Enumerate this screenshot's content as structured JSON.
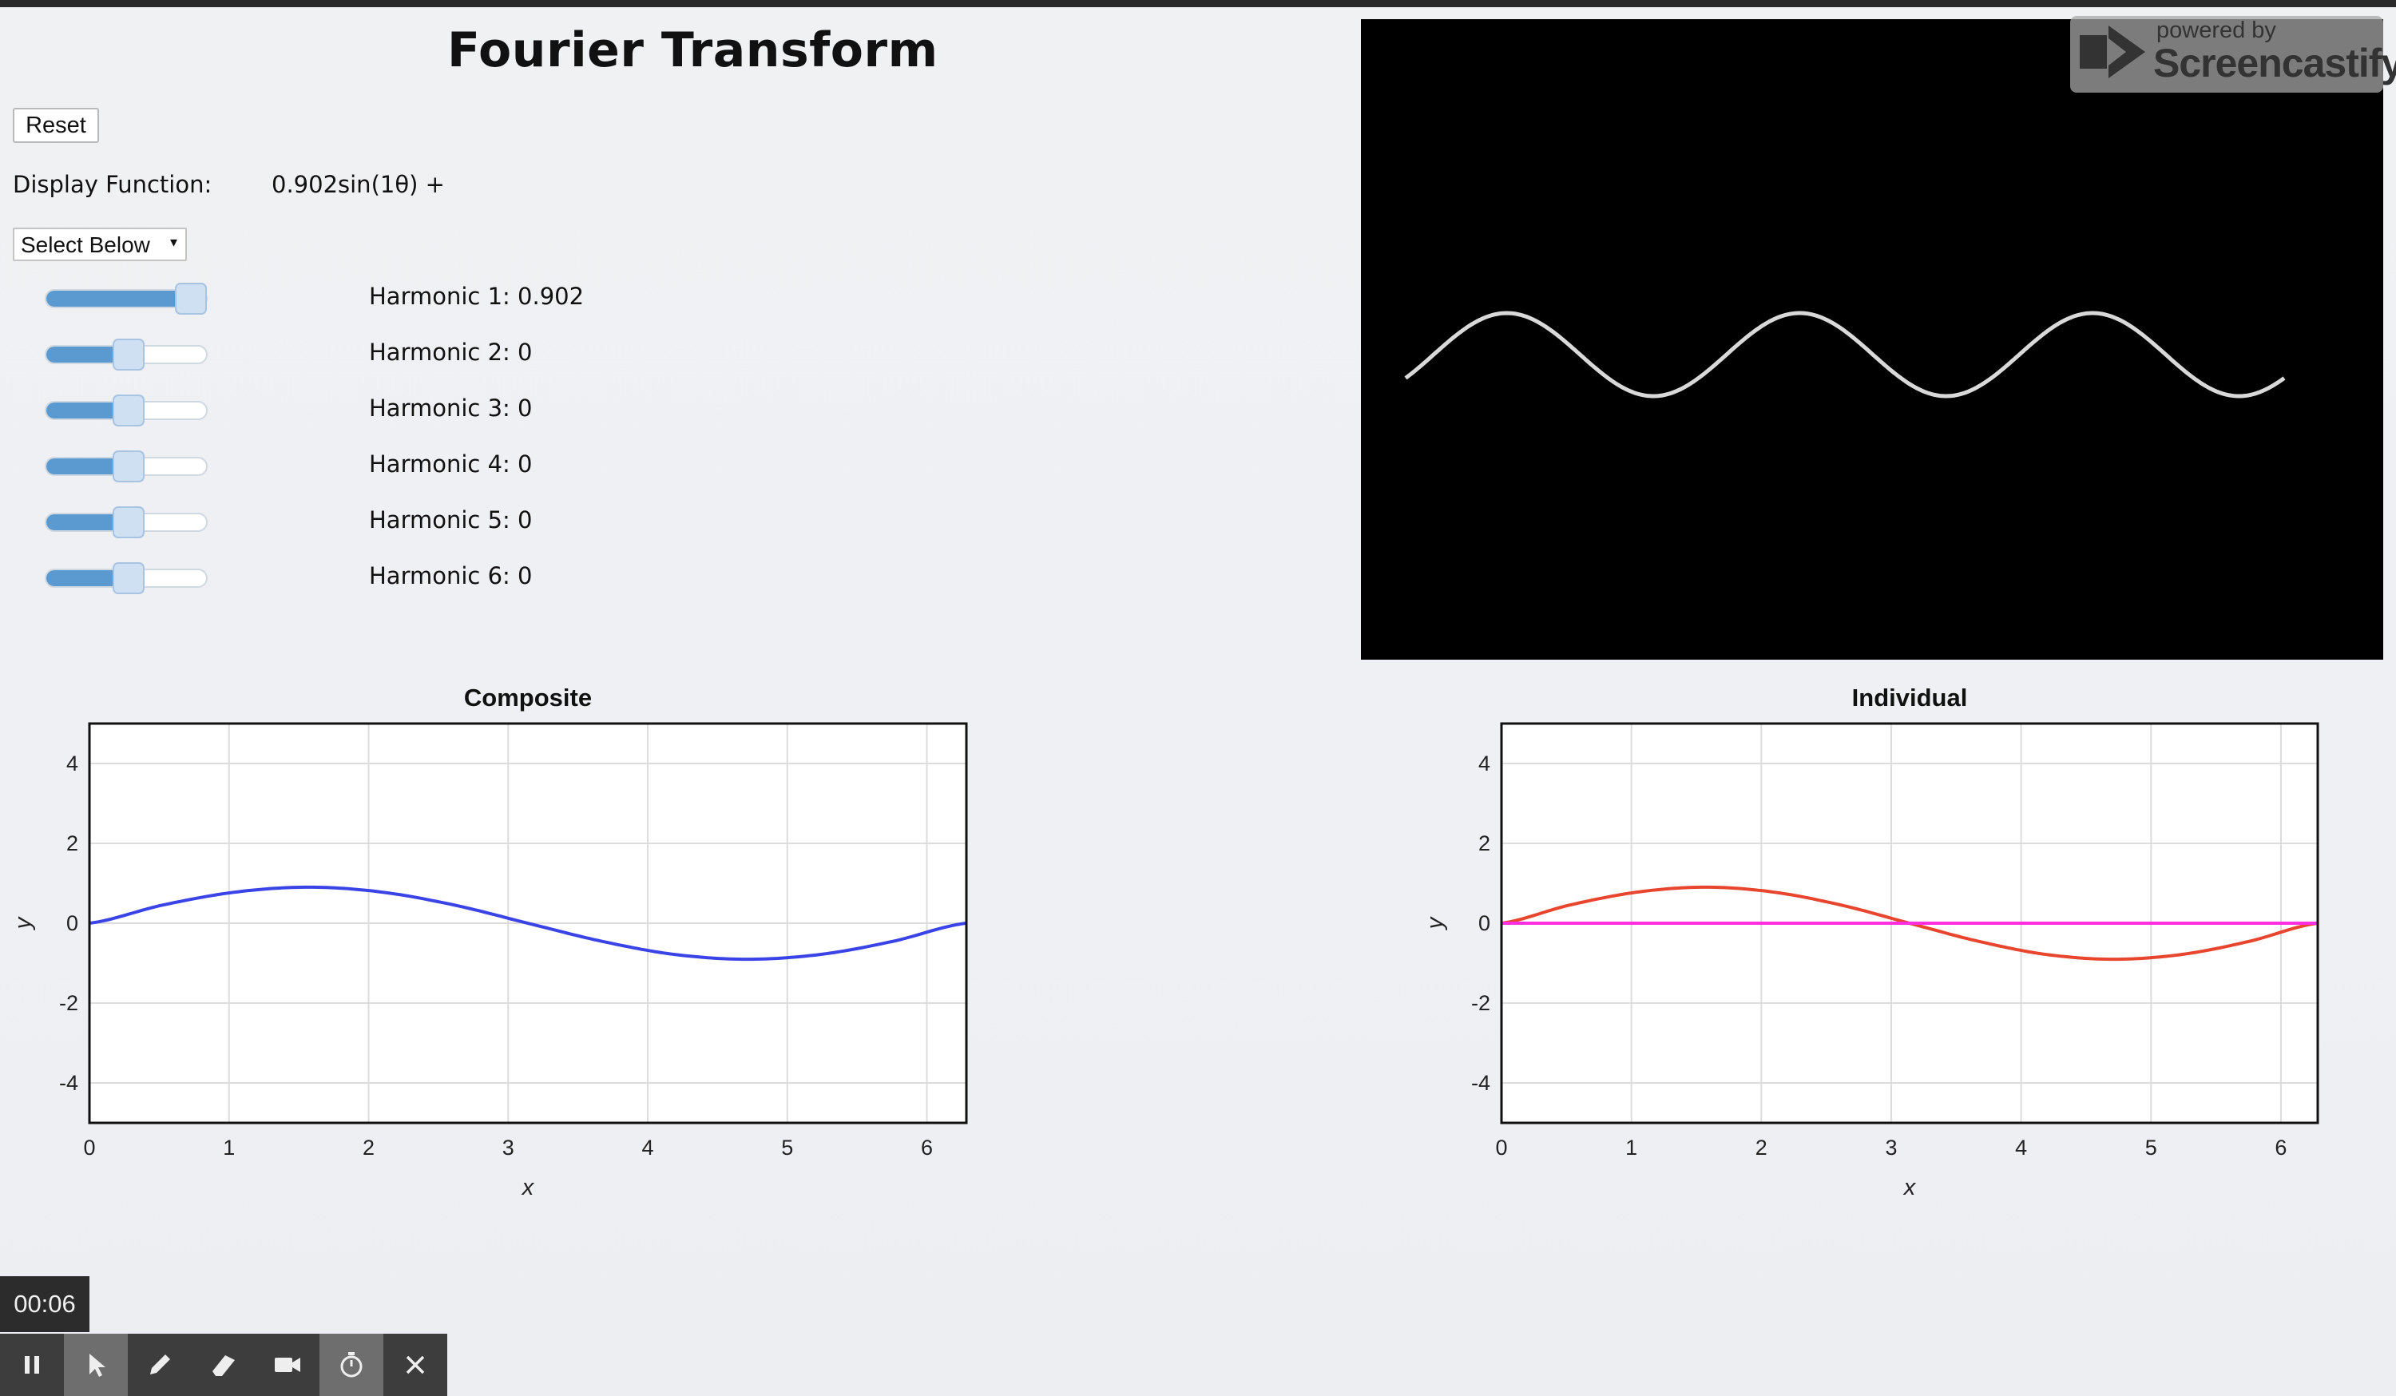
{
  "page": {
    "title": "Fourier Transform",
    "reset_label": "Reset",
    "display_function_label": "Display Function:",
    "display_function_value": "0.902sin(1θ) +",
    "select_label": "Select Below",
    "select_caret": "▾"
  },
  "harmonics": [
    {
      "label": "Harmonic 1: 0.902",
      "value": 0.902
    },
    {
      "label": "Harmonic 2: 0",
      "value": 0
    },
    {
      "label": "Harmonic 3: 0",
      "value": 0
    },
    {
      "label": "Harmonic 4: 0",
      "value": 0
    },
    {
      "label": "Harmonic 5: 0",
      "value": 0
    },
    {
      "label": "Harmonic 6: 0",
      "value": 0
    }
  ],
  "video_panel": {
    "wave_color": "#d9d9d9",
    "wave_cycles": 3
  },
  "watermark": {
    "powered": "powered by",
    "name": "Screencastify"
  },
  "recorder": {
    "time": "00:06",
    "tools": [
      "pause-icon",
      "cursor-icon",
      "pen-icon",
      "eraser-icon",
      "camera-icon",
      "stopwatch-icon",
      "close-icon"
    ],
    "active_tools": [
      "cursor-icon",
      "stopwatch-icon"
    ]
  },
  "chart_data": [
    {
      "type": "line",
      "title": "Composite",
      "xlabel": "x",
      "ylabel": "y",
      "xlim": [
        0,
        6.2832
      ],
      "ylim": [
        -5,
        5
      ],
      "xticks": [
        0,
        1,
        2,
        3,
        4,
        5,
        6
      ],
      "yticks": [
        4,
        2,
        0,
        -2,
        -4
      ],
      "grid": true,
      "series": [
        {
          "color": "#3a44e6",
          "x": [
            0,
            0.52,
            1.05,
            1.57,
            2.09,
            2.62,
            3.14,
            3.67,
            4.19,
            4.71,
            5.24,
            5.76,
            6.28
          ],
          "y": [
            0,
            0.451,
            0.781,
            0.902,
            0.781,
            0.451,
            0,
            -0.451,
            -0.781,
            -0.902,
            -0.781,
            -0.451,
            0
          ]
        }
      ]
    },
    {
      "type": "line",
      "title": "Individual",
      "xlabel": "x",
      "ylabel": "y",
      "xlim": [
        0,
        6.2832
      ],
      "ylim": [
        -5,
        5
      ],
      "xticks": [
        0,
        1,
        2,
        3,
        4,
        5,
        6
      ],
      "yticks": [
        4,
        2,
        0,
        -2,
        -4
      ],
      "grid": true,
      "series": [
        {
          "color": "#e8452e",
          "x": [
            0,
            0.52,
            1.05,
            1.57,
            2.09,
            2.62,
            3.14,
            3.67,
            4.19,
            4.71,
            5.24,
            5.76,
            6.28
          ],
          "y": [
            0,
            0.451,
            0.781,
            0.902,
            0.781,
            0.451,
            0,
            -0.451,
            -0.781,
            -0.902,
            -0.781,
            -0.451,
            0
          ]
        },
        {
          "color": "#ff2ee0",
          "x": [
            0,
            6.28
          ],
          "y": [
            0,
            0
          ]
        }
      ]
    }
  ]
}
